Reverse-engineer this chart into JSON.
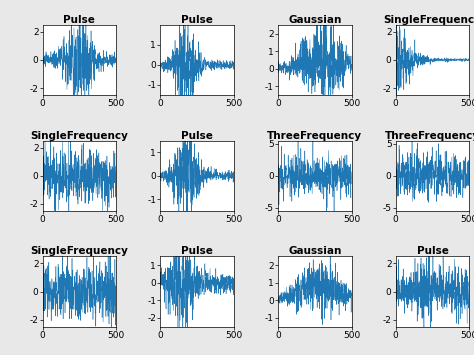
{
  "titles": [
    [
      "Pulse",
      "Pulse",
      "Gaussian",
      "SingleFrequency"
    ],
    [
      "SingleFrequency",
      "Pulse",
      "ThreeFrequency",
      "ThreeFrequency"
    ],
    [
      "SingleFrequency",
      "Pulse",
      "Gaussian",
      "Pulse"
    ]
  ],
  "ylims": [
    [
      [
        -2.5,
        2.5
      ],
      [
        -1.5,
        2.0
      ],
      [
        -1.5,
        2.5
      ],
      [
        -2.5,
        2.5
      ]
    ],
    [
      [
        -2.5,
        2.5
      ],
      [
        -1.5,
        1.5
      ],
      [
        -5.5,
        5.5
      ],
      [
        -5.5,
        5.5
      ]
    ],
    [
      [
        -2.5,
        2.5
      ],
      [
        -2.5,
        1.5
      ],
      [
        -1.5,
        2.5
      ],
      [
        -2.5,
        2.5
      ]
    ]
  ],
  "ytick_labels": [
    [
      [
        "-2",
        "0",
        "2"
      ],
      [
        "-1",
        "0",
        "1"
      ],
      [
        "-1",
        "0",
        "1",
        "2"
      ],
      [
        "-2",
        "0",
        "2"
      ]
    ],
    [
      [
        "-2",
        "0",
        "2"
      ],
      [
        "-1",
        "0",
        "1"
      ],
      [
        "-5",
        "0",
        "5"
      ],
      [
        "-5",
        "0",
        "5"
      ]
    ],
    [
      [
        "-2",
        "0",
        "2"
      ],
      [
        "-2",
        "-1",
        "0",
        "1"
      ],
      [
        "-1",
        "0",
        "1",
        "2"
      ],
      [
        "-2",
        "0",
        "2"
      ]
    ]
  ],
  "ytick_vals": [
    [
      [
        -2,
        0,
        2
      ],
      [
        -1,
        0,
        1
      ],
      [
        -1,
        0,
        1,
        2
      ],
      [
        -2,
        0,
        2
      ]
    ],
    [
      [
        -2,
        0,
        2
      ],
      [
        -1,
        0,
        1
      ],
      [
        -5,
        0,
        5
      ],
      [
        -5,
        0,
        5
      ]
    ],
    [
      [
        -2,
        0,
        2
      ],
      [
        -2,
        -1,
        0,
        1
      ],
      [
        -1,
        0,
        1,
        2
      ],
      [
        -2,
        0,
        2
      ]
    ]
  ],
  "xlim": [
    0,
    500
  ],
  "xticks": [
    0,
    500
  ],
  "n_points": 500,
  "line_color": "#1f77b4",
  "background_color": "#e8e8e8",
  "title_fontsize": 7.5,
  "tick_fontsize": 6.5
}
